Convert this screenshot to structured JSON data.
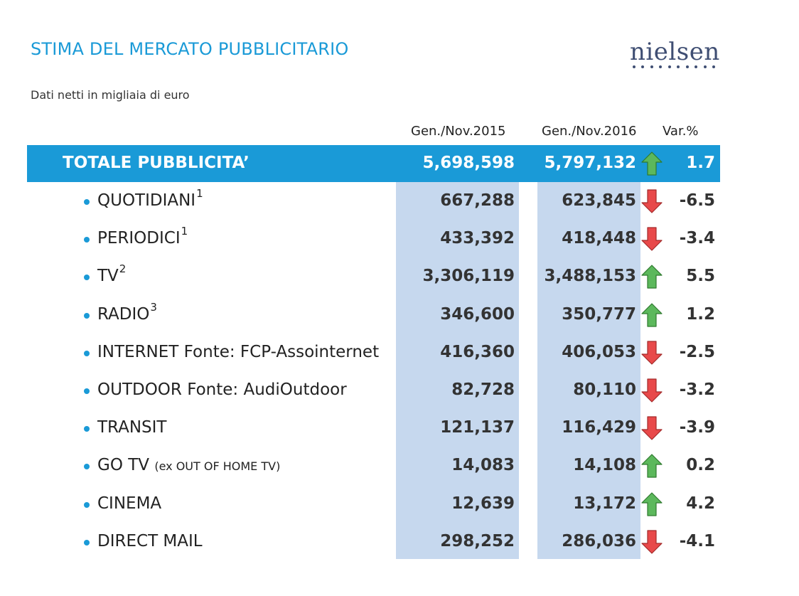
{
  "header": {
    "title": "STIMA DEL MERCATO PUBBLICITARIO",
    "subtitle": "Dati netti in migliaia di euro",
    "logo": "nielsen"
  },
  "columns": {
    "col1": "Gen./Nov.2015",
    "col2": "Gen./Nov.2016",
    "col3": "Var.%"
  },
  "total": {
    "label": "TOTALE PUBBLICITA’",
    "v2015": "5,698,598",
    "v2016": "5,797,132",
    "trend": "up",
    "var": "1.7"
  },
  "rows": [
    {
      "label": "QUOTIDIANI",
      "sup": "1",
      "note": "",
      "v2015": "667,288",
      "v2016": "623,845",
      "trend": "down",
      "var": "-6.5"
    },
    {
      "label": "PERIODICI",
      "sup": "1",
      "note": "",
      "v2015": "433,392",
      "v2016": "418,448",
      "trend": "down",
      "var": "-3.4"
    },
    {
      "label": "TV",
      "sup": "2",
      "note": "",
      "v2015": "3,306,119",
      "v2016": "3,488,153",
      "trend": "up",
      "var": "5.5"
    },
    {
      "label": "RADIO",
      "sup": "3",
      "note": "",
      "v2015": "346,600",
      "v2016": "350,777",
      "trend": "up",
      "var": "1.2"
    },
    {
      "label": "INTERNET   Fonte: FCP-Assointernet",
      "sup": "",
      "note": "",
      "v2015": "416,360",
      "v2016": "406,053",
      "trend": "down",
      "var": "-2.5"
    },
    {
      "label": "OUTDOOR  Fonte: AudiOutdoor",
      "sup": "",
      "note": "",
      "v2015": "82,728",
      "v2016": "80,110",
      "trend": "down",
      "var": "-3.2"
    },
    {
      "label": "TRANSIT",
      "sup": "",
      "note": "",
      "v2015": "121,137",
      "v2016": "116,429",
      "trend": "down",
      "var": "-3.9"
    },
    {
      "label": "GO TV",
      "sup": "",
      "note": "(ex OUT OF HOME TV)",
      "v2015": "14,083",
      "v2016": "14,108",
      "trend": "up",
      "var": "0.2"
    },
    {
      "label": "CINEMA",
      "sup": "",
      "note": "",
      "v2015": "12,639",
      "v2016": "13,172",
      "trend": "up",
      "var": "4.2"
    },
    {
      "label": "DIRECT MAIL",
      "sup": "",
      "note": "",
      "v2015": "298,252",
      "v2016": "286,036",
      "trend": "down",
      "var": "-4.1"
    }
  ],
  "colors": {
    "accent": "#1a9ad7",
    "column_bg": "#c6d8ee",
    "up": "#5cb85c",
    "down": "#e8494a"
  }
}
